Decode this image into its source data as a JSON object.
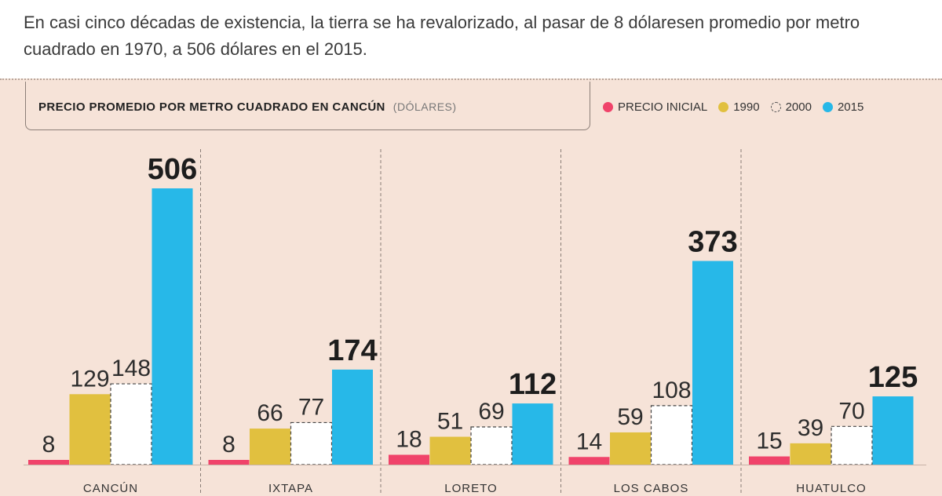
{
  "intro_text": "En casi cinco décadas de existencia, la tierra se ha revalorizado, al pasar de 8 dólaresen promedio por metro cuadrado en 1970, a 506 dólares en el 2015.",
  "chart_data": {
    "type": "bar",
    "title": "PRECIO PROMEDIO POR METRO CUADRADO EN CANCÚN",
    "unit": "(DÓLARES)",
    "categories": [
      "CANCÚN",
      "IXTAPA",
      "LORETO",
      "LOS CABOS",
      "HUATULCO"
    ],
    "series": [
      {
        "name": "PRECIO INICIAL",
        "values": [
          8,
          8,
          18,
          14,
          15
        ],
        "color": "#f0436a",
        "style": "solid"
      },
      {
        "name": "1990",
        "values": [
          129,
          66,
          51,
          59,
          39
        ],
        "color": "#e1c03f",
        "style": "solid"
      },
      {
        "name": "2000",
        "values": [
          148,
          77,
          69,
          108,
          70
        ],
        "color": "#ffffff",
        "style": "dashed"
      },
      {
        "name": "2015",
        "values": [
          506,
          174,
          112,
          373,
          125
        ],
        "color": "#27b8e8",
        "style": "solid"
      }
    ],
    "ylim": [
      0,
      506
    ],
    "legend_position": "top-right",
    "grid": false
  }
}
